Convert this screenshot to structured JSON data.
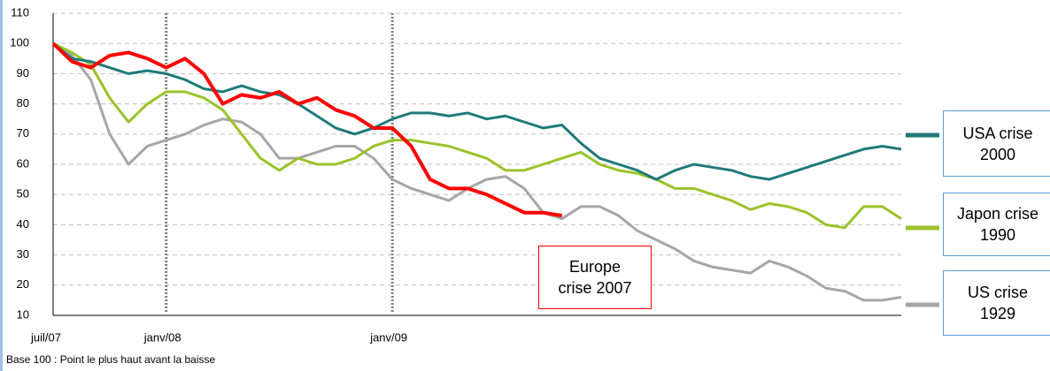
{
  "chart_data": {
    "type": "line",
    "note": "Base 100 : Point le plus haut avant la baisse",
    "x": [
      0,
      1,
      2,
      3,
      4,
      5,
      6,
      7,
      8,
      9,
      10,
      11,
      12,
      13,
      14,
      15,
      16,
      17,
      18,
      19,
      20,
      21,
      22,
      23,
      24,
      25,
      26,
      27,
      28,
      29,
      30,
      31,
      32,
      33,
      34,
      35,
      36,
      37,
      38,
      39,
      40,
      41,
      42,
      43,
      44,
      45
    ],
    "xlim": [
      0,
      45
    ],
    "xticks": [
      {
        "value": 0,
        "label": "juil/07"
      },
      {
        "value": 6,
        "label": "janv/08"
      },
      {
        "value": 18,
        "label": "janv/09"
      }
    ],
    "ylim": [
      10,
      110
    ],
    "yticks": [
      10,
      20,
      30,
      40,
      50,
      60,
      70,
      80,
      90,
      100,
      110
    ],
    "grid": true,
    "series": [
      {
        "name": "USA crise 2000",
        "color": "#1f7a7a",
        "values": [
          100,
          95,
          94,
          92,
          90,
          91,
          90,
          88,
          85,
          84,
          86,
          84,
          83,
          80,
          76,
          72,
          70,
          72,
          75,
          77,
          77,
          76,
          77,
          75,
          76,
          74,
          72,
          73,
          67,
          62,
          60,
          58,
          55,
          58,
          60,
          59,
          58,
          56,
          55,
          57,
          59,
          61,
          63,
          65,
          66,
          65
        ]
      },
      {
        "name": "Japon crise 1990",
        "color": "#9ac32a",
        "values": [
          100,
          97,
          93,
          82,
          74,
          80,
          84,
          84,
          82,
          78,
          70,
          62,
          58,
          62,
          60,
          60,
          62,
          66,
          68,
          68,
          67,
          66,
          64,
          62,
          58,
          58,
          60,
          62,
          64,
          60,
          58,
          57,
          55,
          52,
          52,
          50,
          48,
          45,
          47,
          46,
          44,
          40,
          39,
          46,
          46,
          42
        ]
      },
      {
        "name": "US crise 1929",
        "color": "#a6a6a6",
        "values": [
          100,
          96,
          88,
          70,
          60,
          66,
          68,
          70,
          73,
          75,
          74,
          70,
          62,
          62,
          64,
          66,
          66,
          62,
          55,
          52,
          50,
          48,
          52,
          55,
          56,
          52,
          44,
          42,
          46,
          46,
          43,
          38,
          35,
          32,
          28,
          26,
          25,
          24,
          28,
          26,
          23,
          19,
          18,
          15,
          15,
          16
        ]
      },
      {
        "name": "Europe crise 2007",
        "color": "#ff0000",
        "values": [
          100,
          94,
          92,
          96,
          97,
          95,
          92,
          95,
          90,
          80,
          83,
          82,
          84,
          80,
          82,
          78,
          76,
          72,
          72,
          66,
          55,
          52,
          52,
          50,
          47,
          44,
          44,
          43,
          null,
          null,
          null,
          null,
          null,
          null,
          null,
          null,
          null,
          null,
          null,
          null,
          null,
          null,
          null,
          null,
          null,
          null
        ]
      }
    ]
  }
}
